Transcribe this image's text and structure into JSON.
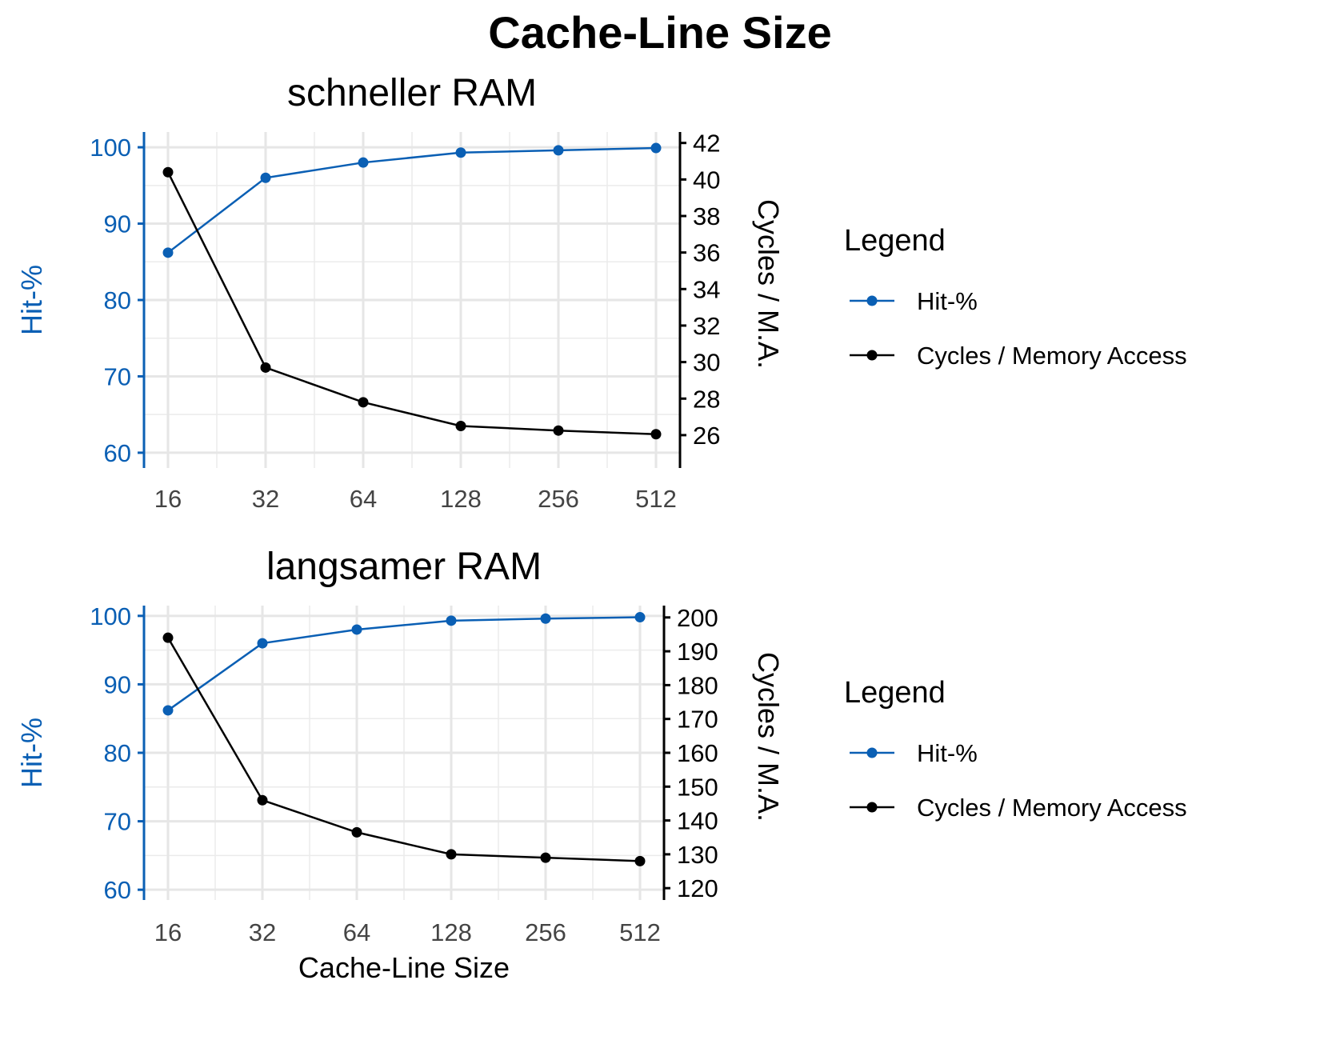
{
  "figure": {
    "title": "Cache-Line Size"
  },
  "chart_data": [
    {
      "type": "line",
      "title": "schneller RAM",
      "xlabel": "",
      "x_scale": "log2",
      "categories": [
        "16",
        "32",
        "64",
        "128",
        "256",
        "512"
      ],
      "x": [
        16,
        32,
        64,
        128,
        256,
        512
      ],
      "ylabel_left": "Hit-%",
      "ylabel_right": "Cycles / M.A.",
      "ylim_left": [
        58,
        102
      ],
      "yticks_left": [
        60,
        70,
        80,
        90,
        100
      ],
      "ylim_right": [
        24.2,
        42.6
      ],
      "yticks_right": [
        26,
        28,
        30,
        32,
        34,
        36,
        38,
        40,
        42
      ],
      "grid": true,
      "legend": {
        "title": "Legend",
        "position": "right"
      },
      "series": [
        {
          "name": "Hit-%",
          "axis": "left",
          "color": "#0a5fb4",
          "values": [
            86.2,
            96.0,
            98.0,
            99.3,
            99.6,
            99.9
          ]
        },
        {
          "name": "Cycles / Memory Access",
          "axis": "right",
          "color": "#000000",
          "values": [
            40.4,
            29.7,
            27.8,
            26.5,
            26.25,
            26.05
          ]
        }
      ]
    },
    {
      "type": "line",
      "title": "langsamer RAM",
      "xlabel": "Cache-Line Size",
      "x_scale": "log2",
      "categories": [
        "16",
        "32",
        "64",
        "128",
        "256",
        "512"
      ],
      "x": [
        16,
        32,
        64,
        128,
        256,
        512
      ],
      "ylabel_left": "Hit-%",
      "ylabel_right": "Cycles / M.A.",
      "ylim_left": [
        58.5,
        101.5
      ],
      "yticks_left": [
        60,
        70,
        80,
        90,
        100
      ],
      "ylim_right": [
        116.5,
        203.5
      ],
      "yticks_right": [
        120,
        130,
        140,
        150,
        160,
        170,
        180,
        190,
        200
      ],
      "grid": true,
      "legend": {
        "title": "Legend",
        "position": "right"
      },
      "series": [
        {
          "name": "Hit-%",
          "axis": "left",
          "color": "#0a5fb4",
          "values": [
            86.2,
            96.0,
            98.0,
            99.3,
            99.6,
            99.8
          ]
        },
        {
          "name": "Cycles / Memory Access",
          "axis": "right",
          "color": "#000000",
          "values": [
            194,
            146,
            136.5,
            130,
            129,
            128
          ]
        }
      ]
    }
  ]
}
